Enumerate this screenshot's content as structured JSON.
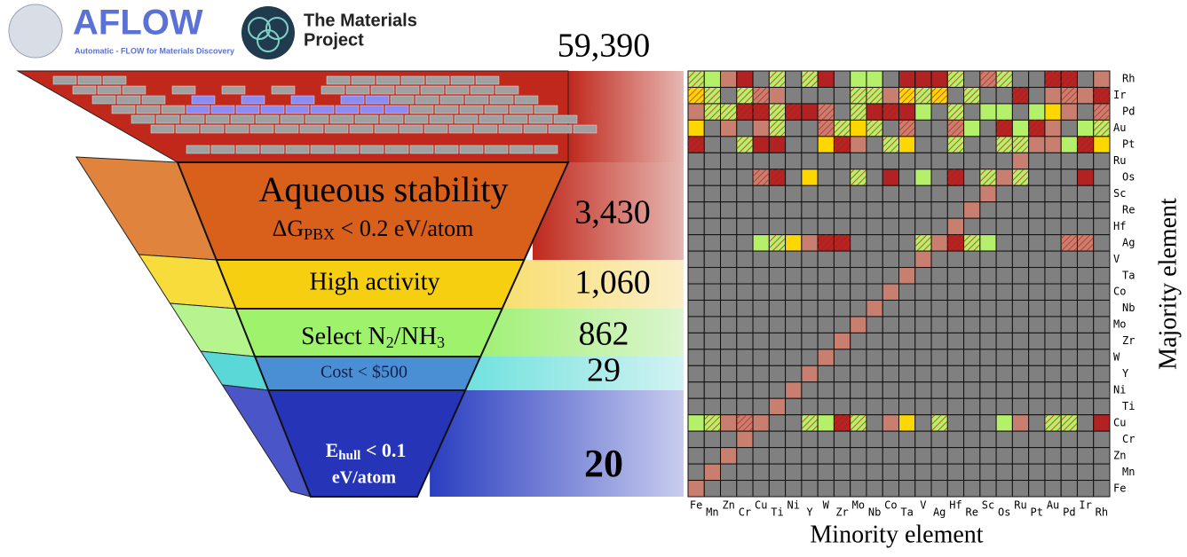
{
  "logos": {
    "aflow": {
      "name": "AFLOW",
      "tagline": "Automatic - FLOW for Materials Discovery"
    },
    "mp": {
      "line1": "The Materials",
      "line2": "Project"
    }
  },
  "funnel": {
    "total": "59,390",
    "stages": [
      {
        "title": "Aqueous stability",
        "criterion": {
          "main": "ΔG",
          "sub": "PBX",
          "rest": " < 0.2 eV/atom"
        },
        "count": "3,430"
      },
      {
        "title": "High activity",
        "count": "1,060"
      },
      {
        "title": {
          "a": "Select N",
          "b": "2",
          "c": "/NH",
          "d": "3"
        },
        "count": "862"
      },
      {
        "title": "Cost < $500",
        "count": "29"
      },
      {
        "title": {
          "main": "E",
          "sub": "hull",
          "rest": " < 0.1"
        },
        "line2": "eV/atom",
        "count": "20"
      }
    ]
  },
  "heatmap": {
    "rows": [
      "Rh",
      "Ir",
      "Pd",
      "Au",
      "Pt",
      "Ru",
      "Os",
      "Sc",
      "Re",
      "Hf",
      "Ag",
      "V",
      "Ta",
      "Co",
      "Nb",
      "Mo",
      "Zr",
      "W",
      "Y",
      "Ni",
      "Ti",
      "Cu",
      "Cr",
      "Zn",
      "Mn",
      "Fe"
    ],
    "columns": [
      "Fe",
      "Mn",
      "Zn",
      "Cr",
      "Cu",
      "Ti",
      "Ni",
      "Y",
      "W",
      "Zr",
      "Mo",
      "Nb",
      "Co",
      "Ta",
      "V",
      "Ag",
      "Hf",
      "Re",
      "Sc",
      "Os",
      "Ru",
      "Pt",
      "Au",
      "Pd",
      "Ir",
      "Rh"
    ],
    "xlabel": "Minority element",
    "ylabel": "Majority element"
  }
}
